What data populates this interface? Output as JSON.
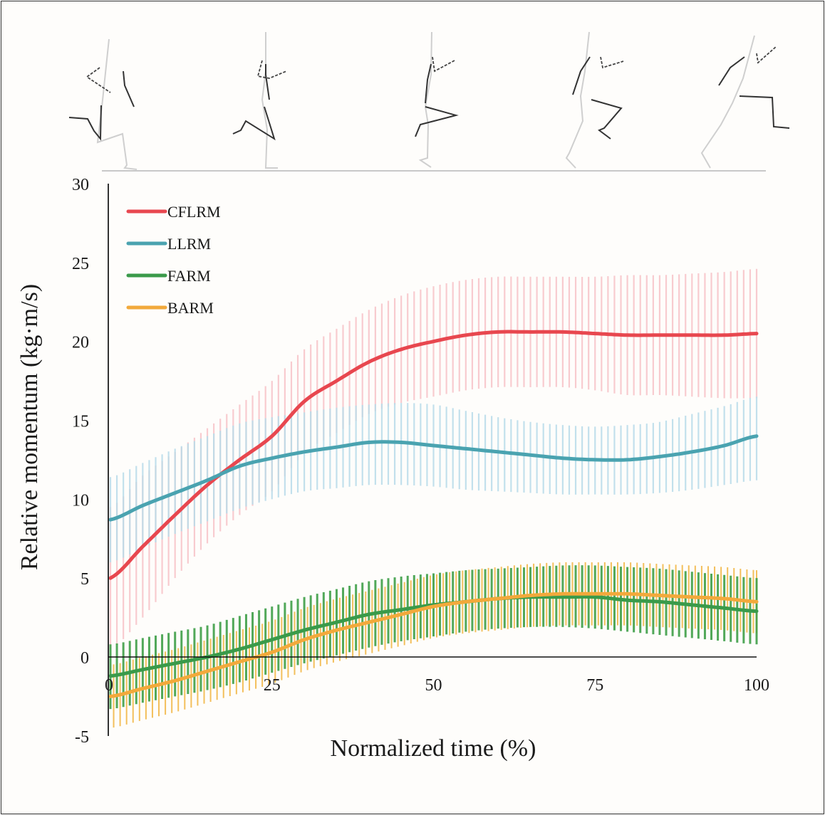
{
  "chart_data": {
    "type": "line",
    "title": "",
    "xlabel": "Normalized time (%)",
    "ylabel": "Relative momentum (kg·m/s)",
    "xlim": [
      0,
      100
    ],
    "ylim": [
      -5,
      30
    ],
    "x_ticks": [
      0,
      25,
      50,
      75,
      100
    ],
    "y_ticks": [
      -5,
      0,
      5,
      10,
      15,
      20,
      25,
      30
    ],
    "x_tick_labels": [
      "0",
      "25",
      "50",
      "75",
      "100"
    ],
    "y_tick_labels": [
      "-5",
      "0",
      "5",
      "10",
      "15",
      "20",
      "25",
      "30"
    ],
    "grid": false,
    "legend_position": "top-left",
    "error_bars": "mean ± SD (vertical bars)",
    "x": [
      0,
      5,
      10,
      15,
      20,
      25,
      30,
      35,
      40,
      45,
      50,
      55,
      60,
      65,
      70,
      75,
      80,
      85,
      90,
      95,
      100
    ],
    "series": [
      {
        "name": "CFLRM",
        "color": "#e8474f",
        "band_color": "#f7c3c8",
        "values": [
          5.0,
          7.0,
          9.0,
          10.9,
          12.5,
          14.0,
          16.2,
          17.5,
          18.7,
          19.5,
          20.0,
          20.4,
          20.6,
          20.6,
          20.6,
          20.5,
          20.4,
          20.4,
          20.4,
          20.4,
          20.5
        ],
        "upper": [
          9.5,
          11.5,
          13.0,
          14.5,
          16.0,
          17.5,
          19.5,
          20.8,
          22.0,
          22.9,
          23.5,
          23.9,
          24.1,
          24.1,
          24.1,
          24.1,
          24.2,
          24.2,
          24.3,
          24.4,
          24.6
        ],
        "lower": [
          0.5,
          2.5,
          5.0,
          7.2,
          9.0,
          10.5,
          12.9,
          14.2,
          15.4,
          16.1,
          16.5,
          16.9,
          17.1,
          17.1,
          17.1,
          16.9,
          16.6,
          16.6,
          16.5,
          16.4,
          16.4
        ]
      },
      {
        "name": "LLRM",
        "color": "#4aa3b0",
        "band_color": "#b8dcea",
        "values": [
          8.7,
          9.6,
          10.4,
          11.2,
          12.1,
          12.6,
          13.0,
          13.3,
          13.6,
          13.6,
          13.4,
          13.2,
          13.0,
          12.8,
          12.6,
          12.5,
          12.5,
          12.7,
          13.0,
          13.4,
          14.0
        ],
        "upper": [
          11.4,
          12.3,
          13.2,
          14.0,
          14.8,
          15.2,
          15.5,
          15.8,
          16.0,
          16.1,
          16.0,
          15.6,
          15.2,
          14.9,
          14.7,
          14.6,
          14.7,
          14.9,
          15.4,
          15.9,
          16.5
        ],
        "lower": [
          6.0,
          6.9,
          7.8,
          8.6,
          9.4,
          10.0,
          10.5,
          10.7,
          10.9,
          10.9,
          10.8,
          10.6,
          10.5,
          10.4,
          10.3,
          10.3,
          10.3,
          10.4,
          10.6,
          10.9,
          11.2
        ]
      },
      {
        "name": "FARM",
        "color": "#3a9a4a",
        "band_color": "#3f9f48",
        "values": [
          -1.2,
          -0.8,
          -0.4,
          0.0,
          0.5,
          1.1,
          1.7,
          2.2,
          2.7,
          3.0,
          3.3,
          3.5,
          3.7,
          3.8,
          3.8,
          3.8,
          3.6,
          3.5,
          3.3,
          3.1,
          2.9
        ],
        "upper": [
          0.8,
          1.2,
          1.6,
          2.0,
          2.6,
          3.2,
          3.8,
          4.3,
          4.8,
          5.1,
          5.3,
          5.5,
          5.6,
          5.7,
          5.8,
          5.8,
          5.7,
          5.6,
          5.4,
          5.2,
          5.0
        ],
        "lower": [
          -3.3,
          -2.9,
          -2.5,
          -2.1,
          -1.6,
          -1.0,
          -0.4,
          0.1,
          0.6,
          1.0,
          1.3,
          1.6,
          1.8,
          1.9,
          1.9,
          1.8,
          1.6,
          1.4,
          1.2,
          1.0,
          0.8
        ]
      },
      {
        "name": "BARM",
        "color": "#f2a93b",
        "band_color": "#f2b94a",
        "values": [
          -2.5,
          -2.0,
          -1.5,
          -0.9,
          -0.3,
          0.3,
          1.1,
          1.7,
          2.2,
          2.7,
          3.2,
          3.5,
          3.7,
          3.9,
          4.0,
          4.0,
          4.0,
          3.9,
          3.8,
          3.7,
          3.5
        ],
        "upper": [
          -0.5,
          0.0,
          0.5,
          1.1,
          1.7,
          2.3,
          3.1,
          3.7,
          4.2,
          4.7,
          5.2,
          5.5,
          5.7,
          5.9,
          6.0,
          6.0,
          6.0,
          5.9,
          5.8,
          5.7,
          5.5
        ],
        "lower": [
          -4.5,
          -4.0,
          -3.5,
          -2.9,
          -2.3,
          -1.7,
          -0.9,
          -0.3,
          0.2,
          0.7,
          1.2,
          1.5,
          1.7,
          1.9,
          2.0,
          2.0,
          2.0,
          1.9,
          1.8,
          1.7,
          1.5
        ]
      }
    ]
  },
  "figure": {
    "stick_figures": [
      "running-pose-1",
      "running-pose-2",
      "running-pose-3",
      "running-pose-4",
      "running-pose-5"
    ]
  }
}
